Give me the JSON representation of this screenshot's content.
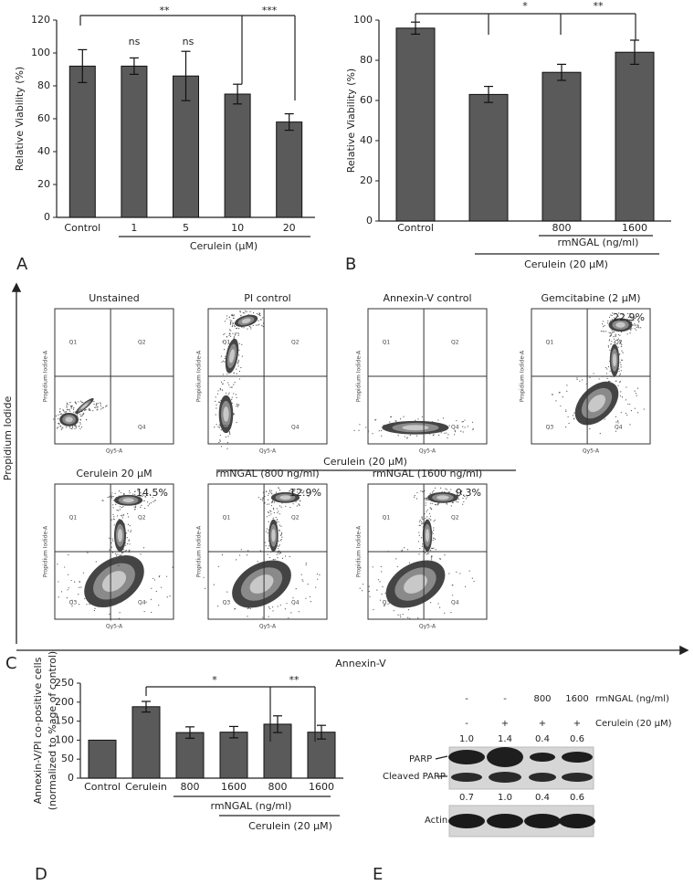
{
  "chart_data": [
    {
      "type": "bar",
      "panel_label": "A",
      "y_label": "Relative Viability (%)",
      "categories": [
        "Control",
        "1",
        "5",
        "10",
        "20"
      ],
      "values": [
        92,
        92,
        86,
        75,
        58
      ],
      "errors": [
        10,
        5,
        15,
        6,
        5
      ],
      "color": "#5a5a5a",
      "ylim": [
        0,
        120
      ],
      "yticks": [
        0,
        20,
        40,
        60,
        80,
        100,
        120
      ],
      "group_labels": [
        "Cerulein (μM)"
      ],
      "annotations": [
        "**",
        "***",
        "ns",
        "ns"
      ]
    },
    {
      "type": "bar",
      "panel_label": "B",
      "y_label": "Relative Viability (%)",
      "categories": [
        "Control",
        null,
        "800",
        "1600"
      ],
      "values": [
        96,
        63,
        74,
        84
      ],
      "errors": [
        3,
        4,
        4,
        6
      ],
      "color": "#5a5a5a",
      "ylim": [
        0,
        100
      ],
      "yticks": [
        0,
        20,
        40,
        60,
        80,
        100
      ],
      "group_labels": [
        "rmNGAL (ng/ml)",
        "Cerulein (20 μM)"
      ],
      "annotations": [
        "*",
        "**"
      ]
    },
    {
      "type": "bar",
      "panel_label": "D",
      "y_label": [
        "Annexin-V/PI co-positive cells",
        "(normalized to %age of control)"
      ],
      "categories": [
        "Control",
        "Cerulein",
        "800",
        "1600",
        "800",
        "1600"
      ],
      "values": [
        100,
        188,
        120,
        121,
        142,
        121
      ],
      "errors": [
        0,
        14,
        15,
        15,
        22,
        18
      ],
      "color": "#5a5a5a",
      "ylim": [
        0,
        250
      ],
      "yticks": [
        0,
        50,
        100,
        150,
        200,
        250
      ],
      "group_labels": [
        "rmNGAL (ng/ml)",
        "Cerulein (20 μM)"
      ],
      "annotations": [
        "*",
        "**"
      ]
    }
  ],
  "flow_cytometry": {
    "panel_label": "C",
    "y_axis_label": "Propidium Iodide",
    "x_axis_label": "Annexin-V",
    "group_label": "Cerulein (20 μM)",
    "plot_y_axis": "Propidium Iodide-A",
    "plot_x_axis": "Qy5-A",
    "quadrant_labels": [
      "Q1",
      "Q2",
      "Q3",
      "Q4"
    ],
    "plots": [
      {
        "title": "Unstained"
      },
      {
        "title": "PI control"
      },
      {
        "title": "Annexin-V control"
      },
      {
        "title": "Gemcitabine (2 μM)",
        "percent": "22.9%"
      },
      {
        "title": "Cerulein 20 μM",
        "percent": "14.5%"
      },
      {
        "title": "rmNGAL (800 ng/ml)",
        "percent": "12.9%"
      },
      {
        "title": "rmNGAL (1600 ng/ml)",
        "percent": "9.3%"
      }
    ]
  },
  "western_blot": {
    "panel_label": "E",
    "rmngal_label": "rmNGAL (ng/ml)",
    "rmngal": [
      "-",
      "-",
      "800",
      "1600"
    ],
    "cerulein_label": "Cerulein (20 μM)",
    "cerulein": [
      "-",
      "+",
      "+",
      "+"
    ],
    "parp_ratio": [
      "1.0",
      "1.4",
      "0.4",
      "0.6"
    ],
    "cleaved_ratio": [
      "0.7",
      "1.0",
      "0.4",
      "0.6"
    ],
    "bands": [
      "PARP",
      "Cleaved PARP",
      "Actin"
    ]
  }
}
